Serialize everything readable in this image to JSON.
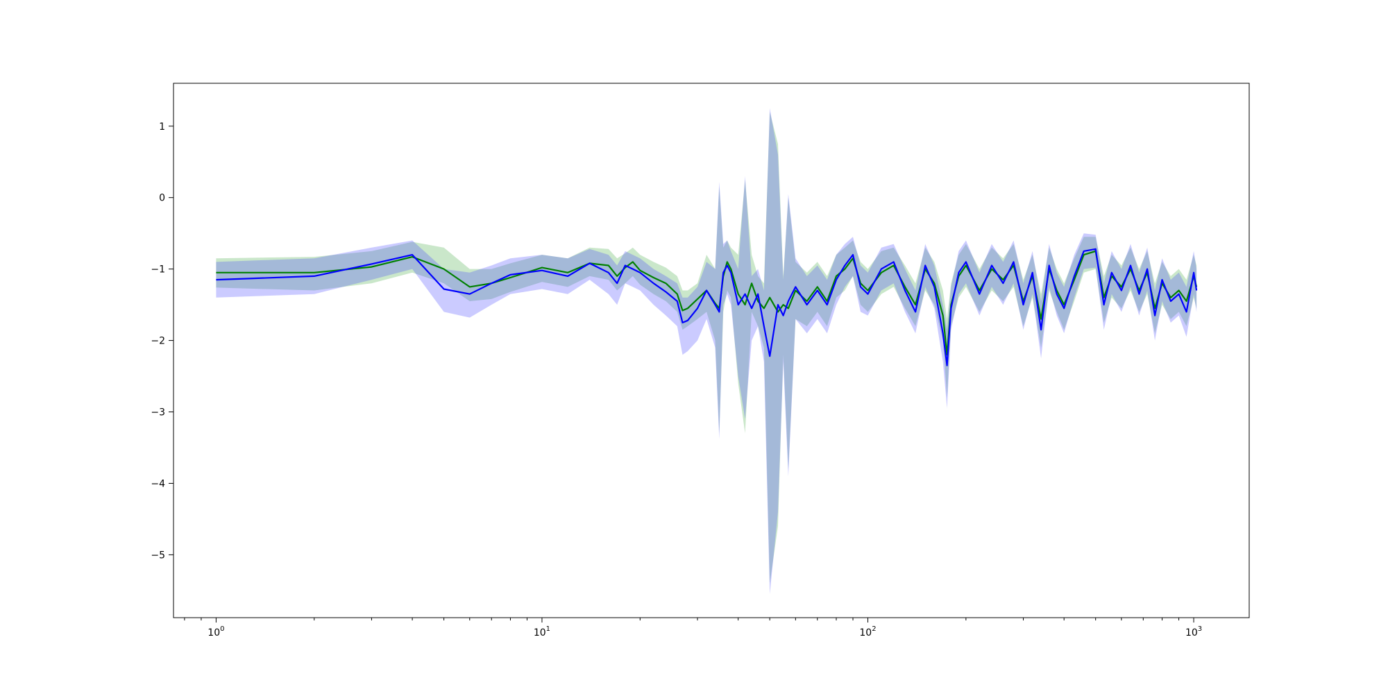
{
  "chart_data": {
    "type": "line",
    "title": "",
    "xlabel": "",
    "ylabel": "",
    "x_scale": "log",
    "xlim": [
      0.74,
      1480
    ],
    "ylim": [
      -5.88,
      1.6
    ],
    "grid": false,
    "legend": "none",
    "x_ticks": [
      {
        "value": 1,
        "base": "10",
        "exp": "0"
      },
      {
        "value": 10,
        "base": "10",
        "exp": "1"
      },
      {
        "value": 100,
        "base": "10",
        "exp": "2"
      },
      {
        "value": 1000,
        "base": "10",
        "exp": "3"
      }
    ],
    "y_ticks": [
      {
        "value": 1,
        "label": "1"
      },
      {
        "value": 0,
        "label": "0"
      },
      {
        "value": -1,
        "label": "−1"
      },
      {
        "value": -2,
        "label": "−2"
      },
      {
        "value": -3,
        "label": "−3"
      },
      {
        "value": -4,
        "label": "−4"
      },
      {
        "value": -5,
        "label": "−5"
      }
    ],
    "colors": {
      "series_a": "#008000",
      "series_a_band": "#2ca02c",
      "series_b": "#0000ff",
      "series_b_band": "#4444ff"
    },
    "series": [
      {
        "color": "#008000",
        "band_color": "#2ca02c",
        "points": [
          [
            1,
            -1.05,
            -1.26,
            -0.85
          ],
          [
            2,
            -1.05,
            -1.3,
            -0.83
          ],
          [
            3,
            -0.97,
            -1.2,
            -0.75
          ],
          [
            4,
            -0.83,
            -1.05,
            -0.62
          ],
          [
            5,
            -1.0,
            -1.2,
            -0.7
          ],
          [
            6,
            -1.25,
            -1.45,
            -1.0
          ],
          [
            7,
            -1.2,
            -1.42,
            -1.0
          ],
          [
            8,
            -1.12,
            -1.32,
            -0.92
          ],
          [
            10,
            -0.98,
            -1.18,
            -0.8
          ],
          [
            12,
            -1.05,
            -1.25,
            -0.85
          ],
          [
            14,
            -0.92,
            -1.1,
            -0.7
          ],
          [
            16,
            -0.95,
            -1.15,
            -0.72
          ],
          [
            17,
            -1.1,
            -1.3,
            -0.85
          ],
          [
            18,
            -0.98,
            -1.2,
            -0.78
          ],
          [
            19,
            -0.9,
            -1.1,
            -0.7
          ],
          [
            20,
            -1.02,
            -1.22,
            -0.8
          ],
          [
            22,
            -1.12,
            -1.35,
            -0.9
          ],
          [
            24,
            -1.2,
            -1.45,
            -0.98
          ],
          [
            26,
            -1.35,
            -1.6,
            -1.1
          ],
          [
            27,
            -1.58,
            -1.85,
            -1.3
          ],
          [
            28,
            -1.55,
            -1.8,
            -1.3
          ],
          [
            30,
            -1.42,
            -1.7,
            -1.2
          ],
          [
            32,
            -1.3,
            -1.6,
            -0.8
          ],
          [
            34,
            -1.48,
            -2.0,
            -1.0
          ],
          [
            35,
            -1.55,
            -3.3,
            0.15
          ],
          [
            36,
            -1.1,
            -1.6,
            -0.7
          ],
          [
            37,
            -0.9,
            -1.3,
            -0.6
          ],
          [
            38,
            -1.0,
            -1.4,
            -0.7
          ],
          [
            40,
            -1.35,
            -2.6,
            -0.8
          ],
          [
            42,
            -1.5,
            -3.3,
            0.25
          ],
          [
            44,
            -1.2,
            -1.6,
            -0.8
          ],
          [
            46,
            -1.45,
            -1.8,
            -1.1
          ],
          [
            48,
            -1.55,
            -2.1,
            -1.2
          ],
          [
            50,
            -1.4,
            -5.4,
            1.2
          ],
          [
            53,
            -1.6,
            -4.6,
            0.75
          ],
          [
            55,
            -1.5,
            -2.2,
            -1.1
          ],
          [
            57,
            -1.55,
            -3.8,
            0.0
          ],
          [
            60,
            -1.3,
            -1.7,
            -0.9
          ],
          [
            65,
            -1.45,
            -1.8,
            -1.05
          ],
          [
            70,
            -1.25,
            -1.6,
            -0.9
          ],
          [
            75,
            -1.45,
            -1.8,
            -1.1
          ],
          [
            80,
            -1.1,
            -1.4,
            -0.8
          ],
          [
            85,
            -1.0,
            -1.3,
            -0.7
          ],
          [
            90,
            -0.85,
            -1.1,
            -0.6
          ],
          [
            95,
            -1.2,
            -1.5,
            -0.9
          ],
          [
            100,
            -1.3,
            -1.6,
            -1.0
          ],
          [
            110,
            -1.05,
            -1.35,
            -0.75
          ],
          [
            120,
            -0.95,
            -1.25,
            -0.7
          ],
          [
            130,
            -1.25,
            -1.55,
            -0.95
          ],
          [
            140,
            -1.5,
            -1.8,
            -1.2
          ],
          [
            150,
            -1.0,
            -1.3,
            -0.7
          ],
          [
            160,
            -1.2,
            -1.5,
            -0.9
          ],
          [
            170,
            -1.65,
            -2.0,
            -1.3
          ],
          [
            175,
            -2.2,
            -2.8,
            -1.7
          ],
          [
            180,
            -1.5,
            -1.8,
            -1.2
          ],
          [
            190,
            -1.1,
            -1.4,
            -0.8
          ],
          [
            200,
            -0.95,
            -1.25,
            -0.65
          ],
          [
            220,
            -1.3,
            -1.6,
            -1.0
          ],
          [
            240,
            -1.0,
            -1.3,
            -0.7
          ],
          [
            260,
            -1.15,
            -1.45,
            -0.85
          ],
          [
            280,
            -0.95,
            -1.25,
            -0.65
          ],
          [
            300,
            -1.45,
            -1.8,
            -1.15
          ],
          [
            320,
            -1.1,
            -1.4,
            -0.8
          ],
          [
            340,
            -1.7,
            -2.1,
            -1.35
          ],
          [
            360,
            -1.0,
            -1.3,
            -0.7
          ],
          [
            380,
            -1.3,
            -1.6,
            -1.0
          ],
          [
            400,
            -1.5,
            -1.85,
            -1.2
          ],
          [
            430,
            -1.15,
            -1.45,
            -0.85
          ],
          [
            460,
            -0.8,
            -1.05,
            -0.55
          ],
          [
            500,
            -0.75,
            -1.0,
            -0.55
          ],
          [
            530,
            -1.4,
            -1.75,
            -1.1
          ],
          [
            560,
            -1.1,
            -1.4,
            -0.8
          ],
          [
            600,
            -1.25,
            -1.55,
            -0.95
          ],
          [
            640,
            -1.0,
            -1.3,
            -0.7
          ],
          [
            680,
            -1.3,
            -1.6,
            -1.0
          ],
          [
            720,
            -1.05,
            -1.35,
            -0.75
          ],
          [
            760,
            -1.55,
            -1.9,
            -1.2
          ],
          [
            800,
            -1.2,
            -1.5,
            -0.9
          ],
          [
            850,
            -1.4,
            -1.7,
            -1.1
          ],
          [
            900,
            -1.3,
            -1.6,
            -1.0
          ],
          [
            950,
            -1.45,
            -1.8,
            -1.15
          ],
          [
            1000,
            -1.1,
            -1.4,
            -0.8
          ],
          [
            1020,
            -1.25,
            -1.55,
            -0.95
          ]
        ]
      },
      {
        "color": "#0000ff",
        "band_color": "#4444ff",
        "points": [
          [
            1,
            -1.15,
            -1.4,
            -0.9
          ],
          [
            2,
            -1.1,
            -1.35,
            -0.85
          ],
          [
            3,
            -0.93,
            -1.15,
            -0.7
          ],
          [
            4,
            -0.8,
            -1.0,
            -0.6
          ],
          [
            5,
            -1.28,
            -1.6,
            -1.0
          ],
          [
            6,
            -1.35,
            -1.68,
            -1.05
          ],
          [
            7,
            -1.2,
            -1.5,
            -0.95
          ],
          [
            8,
            -1.08,
            -1.35,
            -0.85
          ],
          [
            10,
            -1.02,
            -1.28,
            -0.8
          ],
          [
            12,
            -1.1,
            -1.35,
            -0.85
          ],
          [
            14,
            -0.92,
            -1.15,
            -0.72
          ],
          [
            16,
            -1.05,
            -1.35,
            -0.8
          ],
          [
            17,
            -1.2,
            -1.5,
            -0.95
          ],
          [
            18,
            -0.95,
            -1.2,
            -0.75
          ],
          [
            19,
            -1.0,
            -1.25,
            -0.8
          ],
          [
            20,
            -1.05,
            -1.3,
            -0.85
          ],
          [
            22,
            -1.2,
            -1.5,
            -1.0
          ],
          [
            24,
            -1.32,
            -1.65,
            -1.1
          ],
          [
            26,
            -1.45,
            -1.8,
            -1.2
          ],
          [
            27,
            -1.75,
            -2.2,
            -1.4
          ],
          [
            28,
            -1.72,
            -2.15,
            -1.4
          ],
          [
            30,
            -1.55,
            -2.0,
            -1.25
          ],
          [
            32,
            -1.3,
            -1.7,
            -0.9
          ],
          [
            34,
            -1.5,
            -2.1,
            -1.0
          ],
          [
            35,
            -1.6,
            -3.38,
            0.22
          ],
          [
            36,
            -1.05,
            -1.5,
            -0.65
          ],
          [
            37,
            -0.95,
            -1.35,
            -0.6
          ],
          [
            38,
            -1.05,
            -1.5,
            -0.75
          ],
          [
            40,
            -1.5,
            -2.5,
            -1.0
          ],
          [
            42,
            -1.35,
            -3.1,
            0.3
          ],
          [
            44,
            -1.55,
            -2.0,
            -1.1
          ],
          [
            46,
            -1.35,
            -1.8,
            -1.0
          ],
          [
            48,
            -1.8,
            -2.3,
            -1.3
          ],
          [
            50,
            -2.22,
            -5.55,
            1.25
          ],
          [
            53,
            -1.5,
            -4.4,
            0.6
          ],
          [
            55,
            -1.65,
            -2.3,
            -1.15
          ],
          [
            57,
            -1.45,
            -3.9,
            0.05
          ],
          [
            60,
            -1.25,
            -1.7,
            -0.85
          ],
          [
            65,
            -1.5,
            -1.9,
            -1.1
          ],
          [
            70,
            -1.3,
            -1.7,
            -0.95
          ],
          [
            75,
            -1.5,
            -1.9,
            -1.15
          ],
          [
            80,
            -1.15,
            -1.5,
            -0.8
          ],
          [
            85,
            -0.95,
            -1.25,
            -0.65
          ],
          [
            90,
            -0.8,
            -1.1,
            -0.55
          ],
          [
            95,
            -1.25,
            -1.6,
            -0.95
          ],
          [
            100,
            -1.35,
            -1.65,
            -1.05
          ],
          [
            110,
            -1.0,
            -1.3,
            -0.7
          ],
          [
            120,
            -0.9,
            -1.2,
            -0.65
          ],
          [
            130,
            -1.3,
            -1.6,
            -1.0
          ],
          [
            140,
            -1.6,
            -1.9,
            -1.3
          ],
          [
            150,
            -0.95,
            -1.25,
            -0.65
          ],
          [
            160,
            -1.25,
            -1.55,
            -0.95
          ],
          [
            170,
            -1.9,
            -2.3,
            -1.5
          ],
          [
            175,
            -2.35,
            -2.95,
            -1.85
          ],
          [
            180,
            -1.55,
            -1.85,
            -1.25
          ],
          [
            190,
            -1.05,
            -1.35,
            -0.75
          ],
          [
            200,
            -0.9,
            -1.2,
            -0.6
          ],
          [
            220,
            -1.35,
            -1.65,
            -1.05
          ],
          [
            240,
            -0.95,
            -1.25,
            -0.65
          ],
          [
            260,
            -1.2,
            -1.5,
            -0.9
          ],
          [
            280,
            -0.9,
            -1.2,
            -0.6
          ],
          [
            300,
            -1.5,
            -1.85,
            -1.2
          ],
          [
            320,
            -1.05,
            -1.35,
            -0.75
          ],
          [
            340,
            -1.85,
            -2.25,
            -1.45
          ],
          [
            360,
            -0.95,
            -1.25,
            -0.65
          ],
          [
            380,
            -1.35,
            -1.65,
            -1.05
          ],
          [
            400,
            -1.55,
            -1.9,
            -1.25
          ],
          [
            430,
            -1.1,
            -1.4,
            -0.8
          ],
          [
            460,
            -0.75,
            -1.0,
            -0.5
          ],
          [
            500,
            -0.72,
            -0.98,
            -0.52
          ],
          [
            530,
            -1.5,
            -1.85,
            -1.2
          ],
          [
            560,
            -1.05,
            -1.35,
            -0.75
          ],
          [
            600,
            -1.3,
            -1.6,
            -1.0
          ],
          [
            640,
            -0.95,
            -1.25,
            -0.65
          ],
          [
            680,
            -1.35,
            -1.65,
            -1.05
          ],
          [
            720,
            -1.0,
            -1.3,
            -0.7
          ],
          [
            760,
            -1.65,
            -2.0,
            -1.3
          ],
          [
            800,
            -1.15,
            -1.45,
            -0.85
          ],
          [
            850,
            -1.45,
            -1.75,
            -1.15
          ],
          [
            900,
            -1.35,
            -1.65,
            -1.05
          ],
          [
            950,
            -1.6,
            -1.95,
            -1.25
          ],
          [
            1000,
            -1.05,
            -1.35,
            -0.75
          ],
          [
            1020,
            -1.3,
            -1.6,
            -1.0
          ]
        ]
      }
    ]
  }
}
